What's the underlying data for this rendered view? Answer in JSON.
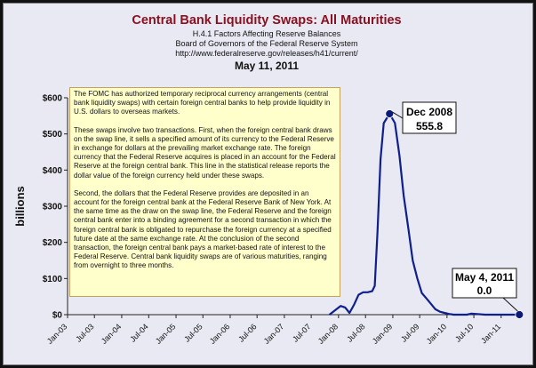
{
  "chart_data": {
    "type": "line",
    "title": "Central Bank Liquidity Swaps: All Maturities",
    "subtitle_lines": [
      "H.4.1 Factors Affecting Reserve Balances",
      "Board of Governors of the Federal Reserve System",
      "http://www.federalreserve.gov/releases/h41/current/"
    ],
    "date_label": "May 11, 2011",
    "ylabel": "billions",
    "xlabel": "",
    "ylim": [
      0,
      600
    ],
    "y_ticks": [
      0,
      100,
      200,
      300,
      400,
      500,
      600
    ],
    "y_tick_labels": [
      "$0",
      "$100",
      "$200",
      "$300",
      "$400",
      "$500",
      "$600"
    ],
    "x_ticks": [
      "Jan-03",
      "Jul-03",
      "Jan-04",
      "Jul-04",
      "Jan-05",
      "Jul-05",
      "Jan-06",
      "Jul-06",
      "Jan-07",
      "Jul-07",
      "Jan-08",
      "Jul-08",
      "Jan-09",
      "Jul-09",
      "Jan-10",
      "Jul-10",
      "Jan-11"
    ],
    "grid": false,
    "line_color": "#0f1f8c",
    "series": [
      {
        "values": [
          [
            "2007-11-01",
            0
          ],
          [
            "2007-12-15",
            14
          ],
          [
            "2008-01-15",
            24
          ],
          [
            "2008-02-15",
            20
          ],
          [
            "2008-03-15",
            5
          ],
          [
            "2008-04-15",
            28
          ],
          [
            "2008-05-15",
            55
          ],
          [
            "2008-06-15",
            62
          ],
          [
            "2008-07-15",
            62
          ],
          [
            "2008-08-15",
            65
          ],
          [
            "2008-09-01",
            80
          ],
          [
            "2008-09-20",
            230
          ],
          [
            "2008-10-10",
            430
          ],
          [
            "2008-11-01",
            530
          ],
          [
            "2008-12-10",
            555.8
          ],
          [
            "2009-01-15",
            530
          ],
          [
            "2009-02-15",
            440
          ],
          [
            "2009-03-15",
            330
          ],
          [
            "2009-04-15",
            240
          ],
          [
            "2009-05-15",
            150
          ],
          [
            "2009-06-15",
            100
          ],
          [
            "2009-07-15",
            60
          ],
          [
            "2009-08-15",
            45
          ],
          [
            "2009-09-15",
            30
          ],
          [
            "2009-10-15",
            15
          ],
          [
            "2009-11-15",
            8
          ],
          [
            "2009-12-15",
            5
          ],
          [
            "2010-01-15",
            2
          ],
          [
            "2010-02-15",
            0
          ],
          [
            "2010-05-15",
            0
          ],
          [
            "2010-06-15",
            3
          ],
          [
            "2010-07-15",
            2
          ],
          [
            "2010-09-15",
            0
          ],
          [
            "2011-05-04",
            0
          ]
        ]
      }
    ],
    "annotations": [
      {
        "name": "peak",
        "label_line1": "Dec 2008",
        "label_line2": "555.8",
        "x": "2008-12-10",
        "y": 555.8
      },
      {
        "name": "latest",
        "label_line1": "May 4, 2011",
        "label_line2": "0.0",
        "x": "2011-05-04",
        "y": 0
      }
    ],
    "marker_color": "#0a1a7a"
  },
  "note": {
    "paragraphs": [
      "The FOMC has authorized temporary reciprocal currency arrangements (central bank liquidity swaps) with certain foreign central banks to help provide liquidity in U.S. dollars to overseas markets.",
      "These swaps involve two transactions. First, when the foreign central bank draws on the swap line, it sells a specified amount of its currency to the Federal Reserve in exchange for dollars at the prevailing market exchange rate. The foreign currency that the Federal Reserve acquires is placed in an account for the Federal Reserve at the foreign central bank. This line in the statistical release reports the dollar value of the foreign currency held under these swaps.",
      "Second, the dollars that the Federal Reserve provides are deposited in an account for the foreign central bank at the Federal Reserve Bank of New York. At the same time as the draw on the swap line, the Federal Reserve and the foreign central bank enter into a binding agreement for a second transaction in which the foreign central bank is obligated to repurchase the foreign currency at a specified future date at the same exchange rate. At the conclusion of the second transaction, the foreign central bank pays a market-based rate of interest to the Federal Reserve. Central bank liquidity swaps are of various maturities, ranging from overnight to three months."
    ]
  }
}
